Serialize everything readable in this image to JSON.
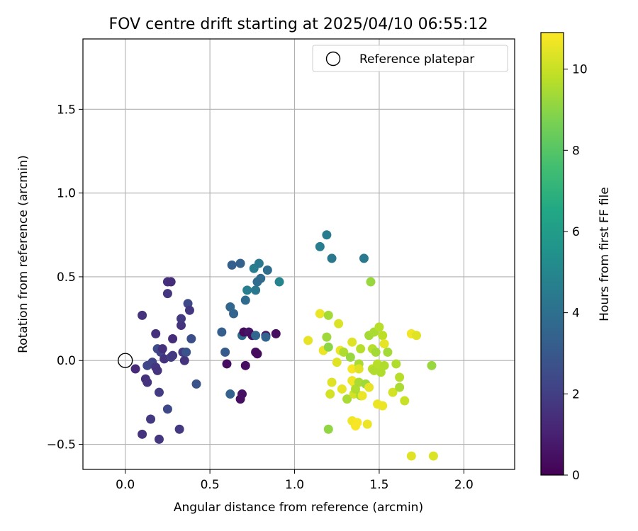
{
  "chart_data": {
    "type": "scatter",
    "title": "FOV centre drift starting at 2025/04/10 06:55:12",
    "xlabel": "Angular distance from reference (arcmin)",
    "ylabel": "Rotation from reference (arcmin)",
    "xlim": [
      -0.25,
      2.3
    ],
    "ylim": [
      -0.65,
      1.92
    ],
    "xticks": [
      0.0,
      0.5,
      1.0,
      1.5,
      2.0
    ],
    "xtick_labels": [
      "0.0",
      "0.5",
      "1.0",
      "1.5",
      "2.0"
    ],
    "yticks": [
      -0.5,
      0.0,
      0.5,
      1.0,
      1.5
    ],
    "ytick_labels": [
      "−0.5",
      "0.0",
      "0.5",
      "1.0",
      "1.5"
    ],
    "grid": true,
    "legend": {
      "position": "top-right",
      "entries": [
        "Reference platepar"
      ]
    },
    "reference_point": {
      "x": 0.0,
      "y": 0.0,
      "marker": "hollow-circle"
    },
    "colorbar": {
      "label": "Hours from first FF file",
      "colormap": "viridis",
      "range": [
        0,
        10.9
      ],
      "ticks": [
        0,
        2,
        4,
        6,
        8,
        10
      ],
      "tick_labels": [
        "0",
        "2",
        "4",
        "6",
        "8",
        "10"
      ]
    },
    "points": [
      {
        "x": 0.06,
        "y": -0.05,
        "c": 1.3
      },
      {
        "x": 0.1,
        "y": 0.27,
        "c": 1.6
      },
      {
        "x": 0.12,
        "y": -0.11,
        "c": 1.5
      },
      {
        "x": 0.13,
        "y": -0.13,
        "c": 1.6
      },
      {
        "x": 0.13,
        "y": -0.03,
        "c": 2.3
      },
      {
        "x": 0.1,
        "y": -0.44,
        "c": 1.6
      },
      {
        "x": 0.15,
        "y": -0.35,
        "c": 1.8
      },
      {
        "x": 0.16,
        "y": -0.01,
        "c": 2.2
      },
      {
        "x": 0.18,
        "y": 0.16,
        "c": 1.5
      },
      {
        "x": 0.18,
        "y": -0.04,
        "c": 1.7
      },
      {
        "x": 0.19,
        "y": -0.06,
        "c": 1.6
      },
      {
        "x": 0.19,
        "y": 0.07,
        "c": 2.5
      },
      {
        "x": 0.2,
        "y": -0.19,
        "c": 1.9
      },
      {
        "x": 0.2,
        "y": -0.47,
        "c": 1.7
      },
      {
        "x": 0.21,
        "y": 0.05,
        "c": 2.2
      },
      {
        "x": 0.22,
        "y": 0.07,
        "c": 1.5
      },
      {
        "x": 0.23,
        "y": 0.01,
        "c": 1.6
      },
      {
        "x": 0.25,
        "y": 0.4,
        "c": 1.7
      },
      {
        "x": 0.25,
        "y": -0.29,
        "c": 2.4
      },
      {
        "x": 0.25,
        "y": 0.47,
        "c": 1.5
      },
      {
        "x": 0.27,
        "y": 0.47,
        "c": 1.4
      },
      {
        "x": 0.27,
        "y": 0.02,
        "c": 2.0
      },
      {
        "x": 0.28,
        "y": 0.13,
        "c": 1.4
      },
      {
        "x": 0.28,
        "y": 0.03,
        "c": 1.8
      },
      {
        "x": 0.32,
        "y": -0.41,
        "c": 1.8
      },
      {
        "x": 0.33,
        "y": 0.21,
        "c": 1.6
      },
      {
        "x": 0.33,
        "y": 0.25,
        "c": 1.8
      },
      {
        "x": 0.34,
        "y": 0.05,
        "c": 1.9
      },
      {
        "x": 0.35,
        "y": 0.0,
        "c": 1.6
      },
      {
        "x": 0.36,
        "y": 0.05,
        "c": 2.8
      },
      {
        "x": 0.37,
        "y": 0.34,
        "c": 2.4
      },
      {
        "x": 0.38,
        "y": 0.3,
        "c": 1.7
      },
      {
        "x": 0.39,
        "y": 0.13,
        "c": 2.6
      },
      {
        "x": 0.42,
        "y": -0.14,
        "c": 2.8
      },
      {
        "x": 0.57,
        "y": 0.17,
        "c": 3.3
      },
      {
        "x": 0.59,
        "y": 0.05,
        "c": 3.1
      },
      {
        "x": 0.6,
        "y": -0.02,
        "c": 0.4
      },
      {
        "x": 0.62,
        "y": 0.32,
        "c": 3.6
      },
      {
        "x": 0.62,
        "y": -0.2,
        "c": 3.4
      },
      {
        "x": 0.63,
        "y": 0.57,
        "c": 3.3
      },
      {
        "x": 0.64,
        "y": 0.28,
        "c": 3.5
      },
      {
        "x": 0.68,
        "y": -0.23,
        "c": 0.4
      },
      {
        "x": 0.68,
        "y": 0.58,
        "c": 3.4
      },
      {
        "x": 0.69,
        "y": -0.2,
        "c": 0.5
      },
      {
        "x": 0.69,
        "y": 0.15,
        "c": 3.9
      },
      {
        "x": 0.7,
        "y": 0.17,
        "c": 0.3
      },
      {
        "x": 0.71,
        "y": 0.36,
        "c": 3.8
      },
      {
        "x": 0.71,
        "y": -0.03,
        "c": 0.4
      },
      {
        "x": 0.72,
        "y": 0.42,
        "c": 4.6
      },
      {
        "x": 0.73,
        "y": 0.17,
        "c": 0.6
      },
      {
        "x": 0.75,
        "y": 0.15,
        "c": 0.4
      },
      {
        "x": 0.76,
        "y": 0.55,
        "c": 4.6
      },
      {
        "x": 0.77,
        "y": 0.42,
        "c": 4.3
      },
      {
        "x": 0.77,
        "y": 0.15,
        "c": 3.6
      },
      {
        "x": 0.77,
        "y": 0.05,
        "c": 0.5
      },
      {
        "x": 0.78,
        "y": 0.47,
        "c": 3.9
      },
      {
        "x": 0.78,
        "y": 0.04,
        "c": 0.3
      },
      {
        "x": 0.79,
        "y": 0.58,
        "c": 4.4
      },
      {
        "x": 0.8,
        "y": 0.49,
        "c": 3.8
      },
      {
        "x": 0.83,
        "y": 0.15,
        "c": 0.6
      },
      {
        "x": 0.83,
        "y": 0.14,
        "c": 3.5
      },
      {
        "x": 0.84,
        "y": 0.54,
        "c": 3.9
      },
      {
        "x": 0.89,
        "y": 0.16,
        "c": 0.4
      },
      {
        "x": 0.91,
        "y": 0.47,
        "c": 4.9
      },
      {
        "x": 1.08,
        "y": 0.12,
        "c": 10.5
      },
      {
        "x": 1.15,
        "y": 0.28,
        "c": 10.6
      },
      {
        "x": 1.15,
        "y": 0.68,
        "c": 4.6
      },
      {
        "x": 1.17,
        "y": 0.06,
        "c": 10.6
      },
      {
        "x": 1.19,
        "y": 0.75,
        "c": 4.5
      },
      {
        "x": 1.19,
        "y": 0.14,
        "c": 9.3
      },
      {
        "x": 1.2,
        "y": 0.27,
        "c": 9.4
      },
      {
        "x": 1.2,
        "y": 0.08,
        "c": 9.0
      },
      {
        "x": 1.2,
        "y": -0.41,
        "c": 9.1
      },
      {
        "x": 1.21,
        "y": -0.2,
        "c": 10.2
      },
      {
        "x": 1.22,
        "y": 0.61,
        "c": 4.3
      },
      {
        "x": 1.22,
        "y": -0.13,
        "c": 10.4
      },
      {
        "x": 1.25,
        "y": -0.01,
        "c": 10.4
      },
      {
        "x": 1.26,
        "y": 0.22,
        "c": 10.3
      },
      {
        "x": 1.27,
        "y": 0.06,
        "c": 10.6
      },
      {
        "x": 1.28,
        "y": -0.17,
        "c": 10.5
      },
      {
        "x": 1.29,
        "y": 0.05,
        "c": 9.6
      },
      {
        "x": 1.31,
        "y": -0.23,
        "c": 9.5
      },
      {
        "x": 1.33,
        "y": 0.02,
        "c": 9.2
      },
      {
        "x": 1.34,
        "y": -0.36,
        "c": 10.7
      },
      {
        "x": 1.34,
        "y": -0.05,
        "c": 10.8
      },
      {
        "x": 1.34,
        "y": -0.12,
        "c": 10.6
      },
      {
        "x": 1.34,
        "y": 0.11,
        "c": 10.4
      },
      {
        "x": 1.35,
        "y": -0.13,
        "c": 10.7
      },
      {
        "x": 1.35,
        "y": -0.2,
        "c": 10.2
      },
      {
        "x": 1.36,
        "y": -0.39,
        "c": 10.8
      },
      {
        "x": 1.36,
        "y": -0.17,
        "c": 9.6
      },
      {
        "x": 1.37,
        "y": -0.37,
        "c": 10.8
      },
      {
        "x": 1.38,
        "y": -0.02,
        "c": 9.5
      },
      {
        "x": 1.38,
        "y": -0.05,
        "c": 10.4
      },
      {
        "x": 1.38,
        "y": -0.13,
        "c": 9.5
      },
      {
        "x": 1.39,
        "y": 0.07,
        "c": 9.7
      },
      {
        "x": 1.39,
        "y": -0.21,
        "c": 9.4
      },
      {
        "x": 1.4,
        "y": -0.21,
        "c": 10.6
      },
      {
        "x": 1.41,
        "y": 0.61,
        "c": 4.4
      },
      {
        "x": 1.42,
        "y": -0.14,
        "c": 9.3
      },
      {
        "x": 1.43,
        "y": -0.38,
        "c": 10.6
      },
      {
        "x": 1.44,
        "y": -0.16,
        "c": 10.5
      },
      {
        "x": 1.44,
        "y": 0.15,
        "c": 9.4
      },
      {
        "x": 1.45,
        "y": 0.47,
        "c": 9.2
      },
      {
        "x": 1.46,
        "y": 0.07,
        "c": 9.7
      },
      {
        "x": 1.46,
        "y": -0.05,
        "c": 9.8
      },
      {
        "x": 1.47,
        "y": 0.17,
        "c": 9.5
      },
      {
        "x": 1.47,
        "y": -0.06,
        "c": 9.6
      },
      {
        "x": 1.48,
        "y": 0.05,
        "c": 9.4
      },
      {
        "x": 1.49,
        "y": -0.02,
        "c": 9.7
      },
      {
        "x": 1.49,
        "y": -0.26,
        "c": 10.6
      },
      {
        "x": 1.5,
        "y": 0.2,
        "c": 9.7
      },
      {
        "x": 1.51,
        "y": -0.07,
        "c": 9.6
      },
      {
        "x": 1.52,
        "y": 0.15,
        "c": 9.8
      },
      {
        "x": 1.52,
        "y": -0.27,
        "c": 10.6
      },
      {
        "x": 1.53,
        "y": -0.03,
        "c": 9.6
      },
      {
        "x": 1.53,
        "y": 0.1,
        "c": 10.5
      },
      {
        "x": 1.55,
        "y": 0.05,
        "c": 9.4
      },
      {
        "x": 1.58,
        "y": -0.19,
        "c": 10.2
      },
      {
        "x": 1.6,
        "y": -0.02,
        "c": 9.6
      },
      {
        "x": 1.62,
        "y": -0.1,
        "c": 9.7
      },
      {
        "x": 1.62,
        "y": -0.16,
        "c": 9.5
      },
      {
        "x": 1.65,
        "y": -0.24,
        "c": 10.0
      },
      {
        "x": 1.69,
        "y": 0.16,
        "c": 10.7
      },
      {
        "x": 1.69,
        "y": -0.57,
        "c": 10.4
      },
      {
        "x": 1.72,
        "y": 0.15,
        "c": 10.4
      },
      {
        "x": 1.81,
        "y": -0.03,
        "c": 9.2
      },
      {
        "x": 1.82,
        "y": -0.57,
        "c": 10.3
      }
    ]
  }
}
